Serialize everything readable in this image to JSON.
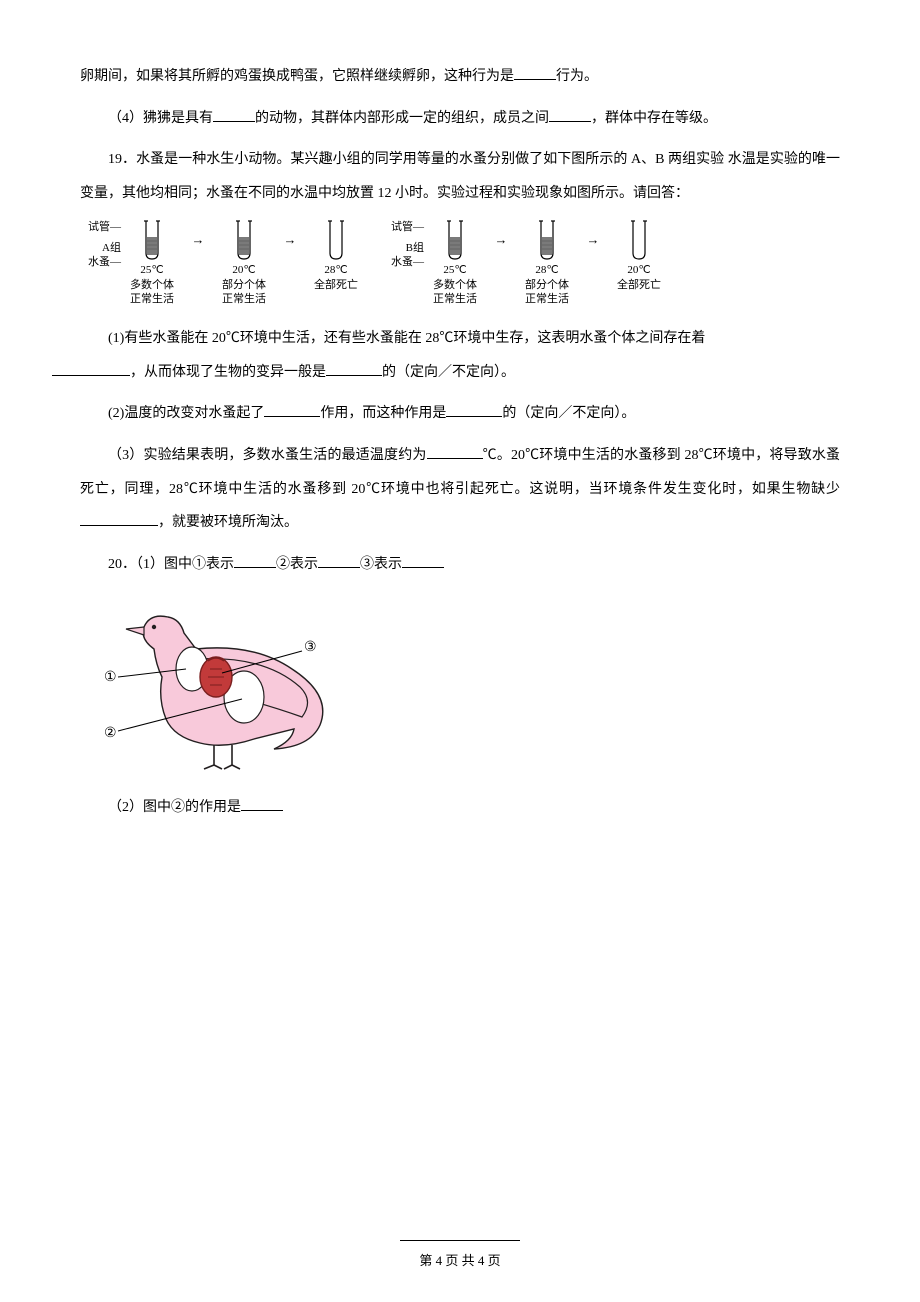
{
  "p1": "卵期间，如果将其所孵的鸡蛋换成鸭蛋，它照样继续孵卵，这种行为是",
  "p1b": "行为。",
  "p2a": "（4）狒狒是具有",
  "p2b": "的动物，其群体内部形成一定的组织，成员之间",
  "p2c": "，群体中存在等级。",
  "q19a": "19．水蚤是一种水生小动物。某兴趣小组的同学用等量的水蚤分别做了如下图所示的 A、B 两组实验 水温是实验的唯一变量，其他均相同；水蚤在不同的水温中均放置 12 小时。实验过程和实验现象如图所示。请回答：",
  "exp": {
    "labels": {
      "tube": "试管",
      "flea": "水蚤"
    },
    "A": {
      "name": "A组",
      "stages": [
        {
          "temp": "25℃",
          "s1": "多数个体",
          "s2": "正常生活",
          "filled": true
        },
        {
          "temp": "20℃",
          "s1": "部分个体",
          "s2": "正常生活",
          "filled": true
        },
        {
          "temp": "28℃",
          "s1": "全部死亡",
          "s2": "",
          "filled": false
        }
      ]
    },
    "B": {
      "name": "B组",
      "stages": [
        {
          "temp": "25℃",
          "s1": "多数个体",
          "s2": "正常生活",
          "filled": true
        },
        {
          "temp": "28℃",
          "s1": "部分个体",
          "s2": "正常生活",
          "filled": true
        },
        {
          "temp": "20℃",
          "s1": "全部死亡",
          "s2": "",
          "filled": false
        }
      ]
    }
  },
  "q19_1a": "(1)有些水蚤能在 20℃环境中生活，还有些水蚤能在 28℃环境中生存，这表明水蚤个体之间存在着",
  "q19_1b": "，从而体现了生物的变异一般是",
  "q19_1c": "的（定向／不定向）。",
  "q19_2a": "(2)温度的改变对水蚤起了",
  "q19_2b": "作用，而这种作用是",
  "q19_2c": "的（定向／不定向）。",
  "q19_3a": "（3）实验结果表明，多数水蚤生活的最适温度约为",
  "q19_3b": "℃。20℃环境中生活的水蚤移到 28℃环境中，将导致水蚤死亡，同理，28℃环境中生活的水蚤移到 20℃环境中也将引起死亡。这说明，当环境条件发生变化时，如果生物缺少",
  "q19_3c": "，就要被环境所淘汰。",
  "q20a": "20．（1）图中①表示",
  "q20b": "②表示",
  "q20c": "③表示",
  "bird": {
    "labels": {
      "l1": "①",
      "l2": "②",
      "l3": "③"
    },
    "colors": {
      "body": "#f8c9da",
      "outline": "#231f20",
      "organ": "#c23a3a",
      "organ_dark": "#7a1f1f",
      "white": "#ffffff"
    }
  },
  "q20_2a": "（2）图中②的作用是",
  "footer": "第 4 页 共 4 页"
}
